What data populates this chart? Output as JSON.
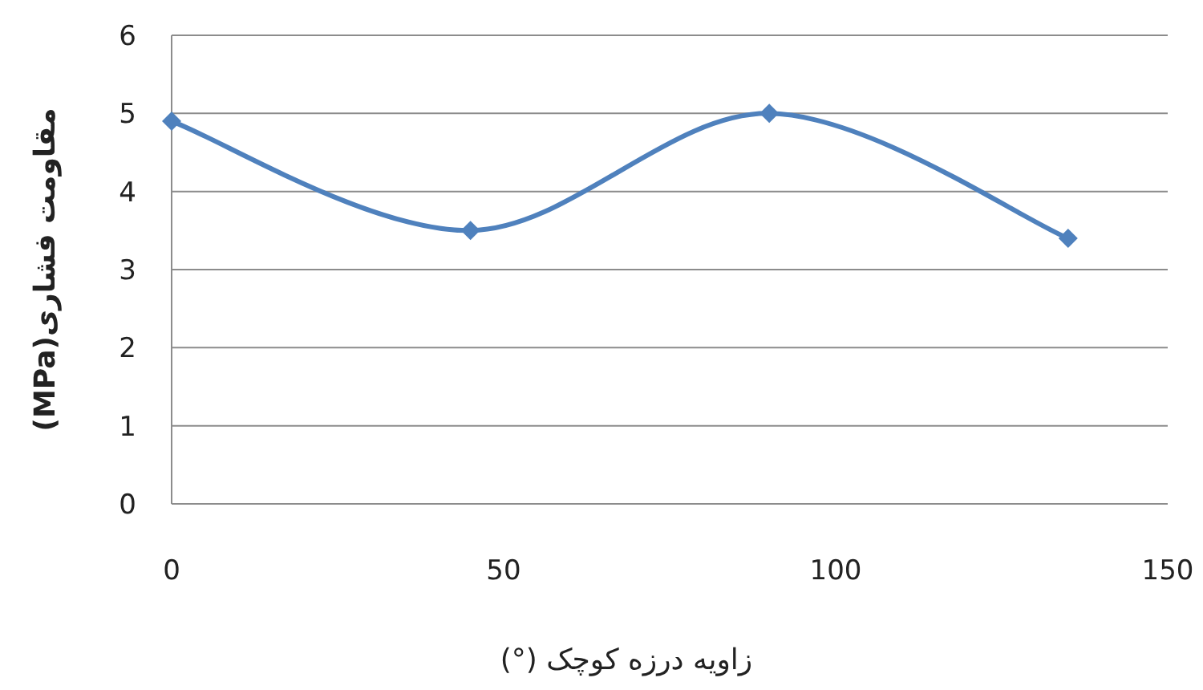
{
  "chart_data": {
    "type": "line",
    "xlabel": "زاویه درزه کوچک (°)",
    "ylabel": "مقاومت فشاری(MPa)",
    "x": [
      0,
      45,
      90,
      135
    ],
    "series": [
      {
        "color": "#4f81bd",
        "values": [
          4.9,
          3.5,
          5.0,
          3.4
        ]
      }
    ],
    "xlim": [
      0,
      150
    ],
    "xticks": [
      0,
      50,
      100,
      150
    ],
    "ylim": [
      0,
      6
    ],
    "yticks": [
      0,
      1,
      2,
      3,
      4,
      5,
      6
    ],
    "grid": "y",
    "marker": "diamond",
    "line_style": "solid"
  }
}
